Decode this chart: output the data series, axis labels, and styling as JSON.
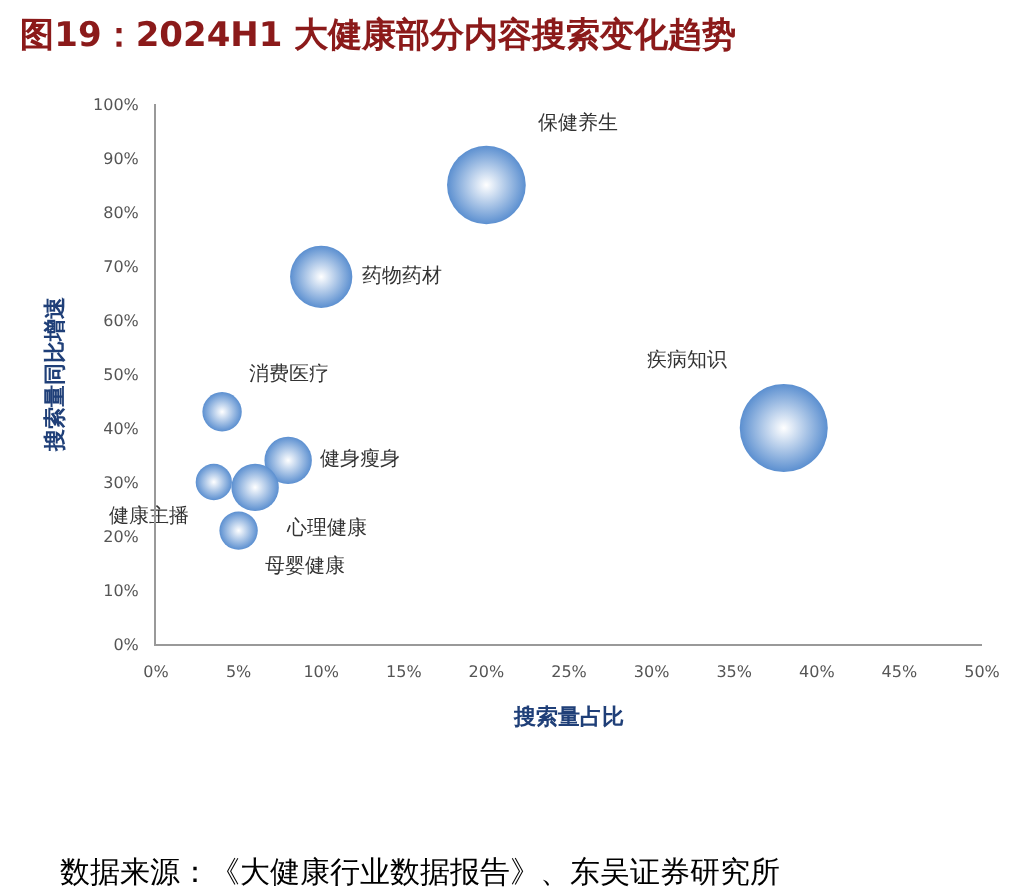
{
  "chart_data": {
    "type": "bubble",
    "title": "图19：2024H1 大健康部分内容搜索变化趋势",
    "xlabel": "搜索量占比",
    "ylabel": "搜索量同比增速",
    "series": [
      {
        "name": "保健养生",
        "x": [
          20
        ],
        "values": [
          85
        ],
        "sizes": [
          0.8
        ]
      },
      {
        "name": "药物药材",
        "x": [
          10
        ],
        "values": [
          68
        ],
        "sizes": [
          0.5
        ]
      },
      {
        "name": "疾病知识",
        "x": [
          38
        ],
        "values": [
          40
        ],
        "sizes": [
          1
        ]
      },
      {
        "name": "消费医疗",
        "x": [
          4
        ],
        "values": [
          43
        ],
        "sizes": [
          0.2
        ]
      },
      {
        "name": "健身瘦身",
        "x": [
          8
        ],
        "values": [
          34
        ],
        "sizes": [
          0.29
        ]
      },
      {
        "name": "心理健康",
        "x": [
          6
        ],
        "values": [
          29
        ],
        "sizes": [
          0.29
        ]
      },
      {
        "name": "健康主播",
        "x": [
          3.5
        ],
        "values": [
          30
        ],
        "sizes": [
          0.17
        ]
      },
      {
        "name": "母婴健康",
        "x": [
          5
        ],
        "values": [
          21
        ],
        "sizes": [
          0.19
        ]
      }
    ],
    "color": "#5b8fd0",
    "xlim": [
      0,
      50
    ],
    "xticks": [
      {
        "value": 0,
        "label": "0%"
      },
      {
        "value": 5,
        "label": "5%"
      },
      {
        "value": 10,
        "label": "10%"
      },
      {
        "value": 15,
        "label": "15%"
      },
      {
        "value": 20,
        "label": "20%"
      },
      {
        "value": 25,
        "label": "25%"
      },
      {
        "value": 30,
        "label": "30%"
      },
      {
        "value": 35,
        "label": "35%"
      },
      {
        "value": 40,
        "label": "40%"
      },
      {
        "value": 45,
        "label": "45%"
      },
      {
        "value": 50,
        "label": "50%"
      }
    ],
    "ylim": [
      0,
      100
    ],
    "yticks": [
      {
        "value": 0,
        "label": "0%"
      },
      {
        "value": 10,
        "label": "10%"
      },
      {
        "value": 20,
        "label": "20%"
      },
      {
        "value": 30,
        "label": "30%"
      },
      {
        "value": 40,
        "label": "40%"
      },
      {
        "value": 50,
        "label": "50%"
      },
      {
        "value": 60,
        "label": "60%"
      },
      {
        "value": 70,
        "label": "70%"
      },
      {
        "value": 80,
        "label": "80%"
      },
      {
        "value": 90,
        "label": "90%"
      },
      {
        "value": 100,
        "label": "100%"
      }
    ],
    "grid": false,
    "legend": false,
    "annotations": [
      "数据来源：《大健康行业数据报告》、东吴证券研究所"
    ]
  }
}
